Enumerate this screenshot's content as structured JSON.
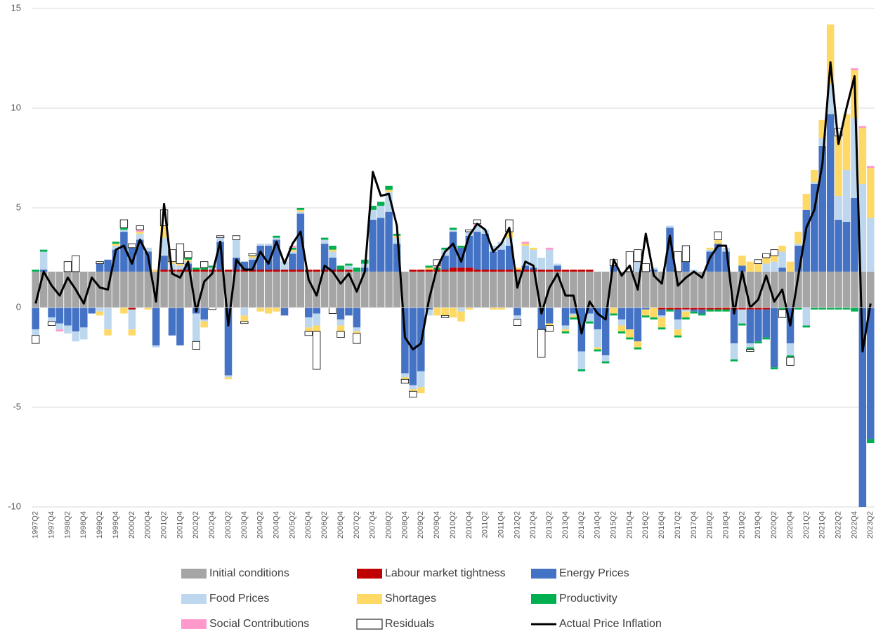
{
  "chart_data": {
    "type": "bar",
    "stacked": true,
    "categories": [
      "1997Q2",
      null,
      "1997Q4",
      null,
      "1998Q2",
      null,
      "1998Q4",
      null,
      "1999Q2",
      null,
      "1999Q4",
      null,
      "2000Q2",
      null,
      "2000Q4",
      null,
      "2001Q2",
      null,
      "2001Q4",
      null,
      "2002Q2",
      null,
      "2002Q4",
      null,
      "2003Q2",
      null,
      "2003Q4",
      null,
      "2004Q2",
      null,
      "2004Q4",
      null,
      "2005Q2",
      null,
      "2005Q4",
      null,
      "2006Q2",
      null,
      "2006Q4",
      null,
      "2007Q2",
      null,
      "2007Q4",
      null,
      "2008Q2",
      null,
      "2008Q4",
      null,
      "2009Q2",
      null,
      "2009Q4",
      null,
      "2010Q2",
      null,
      "2010Q4",
      null,
      "2011Q2",
      null,
      "2011Q4",
      null,
      "2012Q2",
      null,
      "2012Q4",
      null,
      "2013Q2",
      null,
      "2013Q4",
      null,
      "2014Q2",
      null,
      "2014Q4",
      null,
      "2015Q2",
      null,
      "2015Q4",
      null,
      "2016Q2",
      null,
      "2016Q4",
      null,
      "2017Q2",
      null,
      "2017Q4",
      null,
      "2018Q2",
      null,
      "2018Q4",
      null,
      "2019Q2",
      null,
      "2019Q4",
      null,
      "2020Q2",
      null,
      "2020Q4",
      null,
      "2021Q2",
      null,
      "2021Q4",
      null,
      "2022Q2",
      null,
      "2022Q4",
      null,
      "2023Q2"
    ],
    "ylim": [
      -10,
      15
    ],
    "yticks": [
      -10,
      -5,
      0,
      5,
      10,
      15
    ],
    "grid": true,
    "series": [
      {
        "name": "Initial conditions",
        "color": "#a5a5a5",
        "values": [
          1.8,
          1.8,
          1.8,
          1.8,
          1.8,
          1.8,
          1.8,
          1.8,
          1.8,
          1.8,
          1.8,
          1.8,
          1.8,
          1.8,
          1.8,
          1.8,
          1.8,
          1.8,
          1.8,
          1.8,
          1.8,
          1.8,
          1.8,
          1.8,
          1.8,
          1.8,
          1.8,
          1.8,
          1.8,
          1.8,
          1.8,
          1.8,
          1.8,
          1.8,
          1.8,
          1.8,
          1.8,
          1.8,
          1.8,
          1.8,
          1.8,
          1.8,
          1.8,
          1.8,
          1.8,
          1.8,
          1.8,
          1.8,
          1.8,
          1.8,
          1.8,
          1.8,
          1.8,
          1.8,
          1.8,
          1.8,
          1.8,
          1.8,
          1.8,
          1.8,
          1.8,
          1.8,
          1.8,
          1.8,
          1.8,
          1.8,
          1.8,
          1.8,
          1.8,
          1.8,
          1.8,
          1.8,
          1.8,
          1.8,
          1.8,
          1.8,
          1.8,
          1.8,
          1.8,
          1.8,
          1.8,
          1.8,
          1.8,
          1.8,
          1.8,
          1.8,
          1.8,
          1.8,
          1.8,
          1.8,
          1.8,
          1.8,
          1.8,
          1.8,
          1.8,
          1.8,
          1.8,
          1.8,
          1.8,
          1.8,
          1.8,
          1.8,
          1.8,
          1.8,
          1.8
        ]
      },
      {
        "name": "Labour market tightness",
        "color": "#c00000",
        "values": [
          0,
          0,
          0,
          0,
          0,
          0,
          0,
          0,
          0,
          0,
          0,
          0,
          -0.1,
          0,
          0,
          0,
          0.1,
          0.1,
          0.1,
          0.1,
          0.1,
          0.1,
          0.1,
          0.1,
          0.1,
          0.1,
          0.1,
          0.1,
          0.1,
          0.1,
          0.1,
          0.1,
          0.1,
          0.1,
          0.1,
          0.1,
          0.1,
          0.1,
          0.1,
          0.1,
          0,
          0,
          0,
          0,
          0,
          0,
          0,
          0.1,
          0.1,
          0.1,
          0.1,
          0.1,
          0.2,
          0.2,
          0.2,
          0.1,
          0.1,
          0.1,
          0.1,
          0.1,
          0.1,
          0.1,
          0.1,
          0.1,
          0.1,
          0.1,
          0.1,
          0.1,
          0.1,
          0.1,
          0,
          0,
          0,
          0,
          0,
          0,
          0,
          0,
          -0.1,
          -0.1,
          -0.1,
          -0.1,
          -0.1,
          -0.1,
          -0.1,
          -0.1,
          -0.1,
          -0.1,
          -0.1,
          -0.1,
          -0.1,
          -0.1,
          0,
          0,
          0,
          0,
          0,
          0,
          0,
          0,
          0,
          0,
          0,
          0,
          0
        ]
      },
      {
        "name": "Energy Prices",
        "color": "#4472c4",
        "values": [
          -1.1,
          0.1,
          -0.5,
          -0.8,
          -0.9,
          -1.2,
          -1.0,
          -0.3,
          0.4,
          0.6,
          1.1,
          2.0,
          1.2,
          1.6,
          1.0,
          -1.9,
          0.7,
          -1.4,
          -1.9,
          0.3,
          -0.3,
          -0.6,
          0.0,
          1.4,
          -3.4,
          0.6,
          0.4,
          0.5,
          1.2,
          1.2,
          1.5,
          -0.4,
          0.8,
          2.8,
          -0.5,
          -0.3,
          1.3,
          0.6,
          -0.6,
          -0.4,
          -1.0,
          0.2,
          2.6,
          2.7,
          3.0,
          1.4,
          -3.3,
          -3.9,
          -3.2,
          -0.1,
          0.0,
          0.7,
          1.8,
          1.0,
          1.6,
          1.9,
          1.8,
          0.9,
          1.0,
          1.2,
          -0.4,
          0.2,
          0.1,
          -1.1,
          -0.8,
          0.2,
          -0.9,
          -0.3,
          -2.2,
          -0.3,
          -1.1,
          -2.4,
          0.3,
          -0.6,
          -1.1,
          -1.7,
          -0.1,
          0.1,
          -0.3,
          2.2,
          -0.5,
          0.5,
          -0.1,
          -0.2,
          1.0,
          1.4,
          1.0,
          -1.7,
          0.3,
          -1.7,
          -1.6,
          -1.4,
          -3.0,
          0.2,
          -1.8,
          1.3,
          3.1,
          4.4,
          6.3,
          7.9,
          2.6,
          2.5,
          3.7,
          -10.8,
          -6.6
        ]
      },
      {
        "name": "Food Prices",
        "color": "#bdd7ee",
        "values": [
          -0.3,
          0.9,
          -0.2,
          -0.3,
          -0.4,
          -0.5,
          -0.6,
          0.0,
          -0.2,
          -1.1,
          0.2,
          0.1,
          -1.0,
          0.3,
          0.2,
          -0.1,
          0.9,
          0.3,
          0.2,
          0.1,
          -1.4,
          -0.1,
          0.1,
          0.2,
          -0.1,
          0.9,
          -0.4,
          0.1,
          0.1,
          0.1,
          0.1,
          0.4,
          0.1,
          0.1,
          -0.5,
          -0.6,
          0.2,
          0.3,
          -0.3,
          0.2,
          -0.2,
          0.2,
          0.5,
          0.6,
          1.0,
          0.3,
          -0.2,
          -0.2,
          -0.8,
          -0.3,
          0.0,
          0.3,
          0.1,
          -0.2,
          0.2,
          0.3,
          0.2,
          0.3,
          0.4,
          0.4,
          -0.2,
          1.0,
          0.9,
          0.6,
          1.0,
          0.1,
          -0.2,
          -0.1,
          -0.9,
          -0.4,
          -0.9,
          -0.3,
          0.0,
          -0.3,
          0.0,
          0.5,
          0.0,
          0.1,
          -0.1,
          0.1,
          -0.5,
          -0.1,
          0.1,
          0.0,
          0.1,
          0.0,
          0.2,
          -0.8,
          -0.7,
          -0.2,
          0.0,
          0.4,
          0.5,
          0.8,
          -0.6,
          0.1,
          -0.9,
          0.1,
          0.4,
          1.5,
          1.2,
          2.6,
          4.0,
          4.4,
          2.7
        ]
      },
      {
        "name": "Shortages",
        "color": "#ffd966",
        "values": [
          0,
          0,
          0,
          0,
          0,
          0,
          0,
          0,
          -0.2,
          -0.3,
          0.1,
          -0.3,
          -0.3,
          0.1,
          -0.1,
          0.1,
          0.6,
          0.1,
          0.1,
          0.1,
          0.0,
          -0.3,
          0.0,
          0.0,
          -0.1,
          0.0,
          -0.3,
          0.1,
          -0.2,
          -0.3,
          -0.2,
          0.0,
          0.1,
          0.1,
          -0.2,
          -0.3,
          0.0,
          0.1,
          -0.3,
          0.0,
          -0.1,
          0.0,
          0.0,
          0.0,
          0.1,
          0.1,
          -0.1,
          -0.1,
          -0.3,
          0.1,
          -0.4,
          -0.4,
          -0.5,
          -0.5,
          -0.1,
          0.0,
          0.0,
          -0.1,
          -0.1,
          0.3,
          0.1,
          0.1,
          0.1,
          0.0,
          -0.1,
          0.0,
          -0.1,
          -0.1,
          0.0,
          0.0,
          -0.1,
          0.0,
          -0.3,
          -0.3,
          -0.4,
          -0.3,
          -0.3,
          -0.5,
          -0.5,
          0.0,
          -0.3,
          -0.3,
          0.0,
          0.0,
          0.1,
          0.2,
          0.0,
          0.0,
          0.5,
          0.5,
          0.4,
          0.3,
          0.3,
          0.3,
          0.5,
          0.6,
          0.8,
          0.6,
          0.9,
          3.0,
          3.0,
          2.8,
          2.4,
          2.8,
          2.5
        ]
      },
      {
        "name": "Productivity",
        "color": "#00b050",
        "values": [
          0.1,
          0.1,
          0,
          0,
          0,
          0,
          0,
          0,
          0,
          0,
          0.1,
          0.1,
          0,
          0,
          0,
          0,
          0,
          0,
          0,
          0.1,
          0.1,
          0.1,
          0.1,
          0,
          0,
          0,
          0,
          0,
          0,
          0,
          0.1,
          0,
          0.1,
          0.1,
          0,
          0,
          0.1,
          0.2,
          0.2,
          0.1,
          0.2,
          0.2,
          0.2,
          0.2,
          0.2,
          0.1,
          0,
          0,
          0,
          0.1,
          0.1,
          0.1,
          0.1,
          0.1,
          0,
          0,
          0,
          0,
          0,
          0,
          0,
          0,
          0,
          0,
          0,
          0,
          -0.1,
          -0.1,
          -0.1,
          -0.1,
          -0.1,
          -0.1,
          -0.1,
          -0.1,
          -0.1,
          -0.1,
          -0.1,
          -0.1,
          -0.1,
          -0.1,
          -0.1,
          -0.1,
          -0.1,
          -0.1,
          -0.1,
          -0.1,
          -0.1,
          -0.1,
          -0.1,
          -0.1,
          -0.1,
          -0.1,
          -0.1,
          -0.1,
          -0.1,
          -0.1,
          -0.1,
          -0.1,
          -0.1,
          -0.1,
          -0.1,
          -0.1,
          -0.2,
          -0.2,
          -0.2
        ]
      },
      {
        "name": "Social Contributions",
        "color": "#ff99cc",
        "values": [
          0,
          0,
          0,
          -0.1,
          0,
          0,
          0,
          0,
          0,
          0,
          0,
          0,
          0,
          0.1,
          0,
          0,
          0,
          0,
          0,
          0,
          0,
          0,
          0,
          0,
          0,
          0,
          0,
          0,
          0,
          0,
          0,
          0,
          0.1,
          0,
          0,
          0,
          0,
          0,
          0,
          0,
          0,
          0,
          0,
          0,
          0,
          0,
          0,
          0,
          0,
          0,
          0.1,
          0,
          0,
          0,
          0,
          0.1,
          0,
          0,
          0,
          0,
          0,
          0.1,
          0,
          0,
          0.1,
          0,
          0,
          0,
          0,
          0,
          0,
          0,
          0,
          0,
          0,
          0,
          0,
          0,
          0,
          0,
          0,
          0,
          0,
          0,
          0,
          0,
          0,
          0,
          0,
          0,
          0,
          0,
          0,
          0,
          0,
          0,
          0,
          0,
          0,
          0,
          0,
          0,
          0.1,
          0.1,
          0.1
        ]
      },
      {
        "name": "Residuals",
        "color": "#ffffff",
        "values": [
          -0.4,
          0,
          -0.2,
          0,
          0.5,
          0.8,
          0,
          0,
          0.1,
          0,
          0,
          0.4,
          0.2,
          0.2,
          0,
          0,
          0.8,
          0.6,
          1.0,
          0.3,
          -0.4,
          0.3,
          -0.1,
          0.1,
          0,
          0.2,
          -0.1,
          0.1,
          0,
          0,
          0,
          0,
          0,
          0,
          -0.2,
          -1.9,
          0,
          -0.3,
          -0.3,
          0,
          -0.5,
          0,
          0,
          0,
          0,
          0,
          -0.2,
          -0.3,
          0,
          0,
          0.3,
          -0.1,
          0,
          0,
          0.1,
          0.2,
          0,
          0,
          0,
          0.6,
          -0.3,
          0,
          0,
          -1.4,
          -0.3,
          0,
          0,
          0,
          0,
          0,
          0,
          0,
          0.3,
          0,
          1.0,
          0.6,
          0.4,
          0,
          0,
          0,
          1.0,
          0.8,
          0,
          0,
          0,
          0.4,
          0,
          0,
          0,
          -0.1,
          0.2,
          0.2,
          0.3,
          -0.4,
          -0.4,
          0,
          0,
          0,
          0,
          0,
          0.4,
          0,
          0,
          0,
          0
        ]
      },
      {
        "name": "Actual Price Inflation",
        "color": "#000000",
        "type": "line",
        "values": [
          0.2,
          1.8,
          1.1,
          0.6,
          1.5,
          0.9,
          0.2,
          1.5,
          1.0,
          0.9,
          2.9,
          3.1,
          2.2,
          3.4,
          2.6,
          0.3,
          5.2,
          1.7,
          1.5,
          2.3,
          -0.2,
          1.3,
          1.7,
          3.3,
          -0.9,
          2.4,
          1.9,
          1.9,
          2.8,
          2.2,
          3.3,
          2.2,
          3.2,
          3.8,
          1.4,
          0.6,
          2.1,
          1.8,
          1.2,
          1.7,
          0.8,
          1.8,
          6.8,
          5.6,
          5.7,
          4.1,
          -1.5,
          -2.1,
          -1.8,
          0.4,
          2.0,
          2.8,
          3.2,
          2.3,
          3.6,
          4.2,
          3.9,
          2.8,
          3.2,
          4.0,
          1.0,
          2.3,
          2.1,
          -0.3,
          1.0,
          1.7,
          0.6,
          0.6,
          -1.3,
          0.3,
          -0.3,
          -0.6,
          2.4,
          1.6,
          2.1,
          0.9,
          3.7,
          1.6,
          1.2,
          3.6,
          1.1,
          1.5,
          1.8,
          1.5,
          2.5,
          3.1,
          3.1,
          -0.3,
          1.8,
          0.0,
          0.4,
          1.6,
          0.3,
          0.9,
          -0.9,
          1.6,
          4.0,
          4.9,
          7.2,
          12.3,
          8.2,
          10.0,
          11.6,
          -2.2,
          0.2
        ]
      }
    ]
  }
}
